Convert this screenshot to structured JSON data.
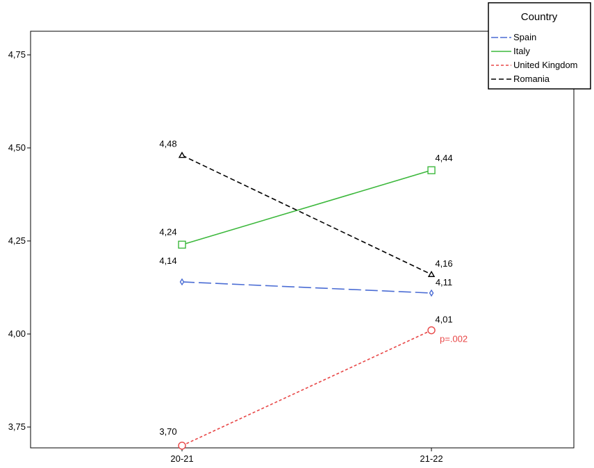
{
  "chart_data": {
    "type": "line",
    "categories": [
      "20-21",
      "21-22"
    ],
    "ylim": [
      3.7,
      4.8
    ],
    "yticks": [
      "3,75",
      "4,00",
      "4,25",
      "4,50",
      "4,75"
    ],
    "ytick_values": [
      3.75,
      4.0,
      4.25,
      4.5,
      4.75
    ],
    "grid": false,
    "legend": {
      "title": "Country",
      "placement": "top-right"
    },
    "series": [
      {
        "name": "Spain",
        "values": [
          4.14,
          4.11
        ],
        "labels": [
          "4,14",
          "4,11"
        ],
        "color": "#4a6cd4",
        "dash": "long-dash",
        "marker": "diamond"
      },
      {
        "name": "Italy",
        "values": [
          4.24,
          4.44
        ],
        "labels": [
          "4,24",
          "4,44"
        ],
        "color": "#3cb83c",
        "dash": "solid",
        "marker": "square"
      },
      {
        "name": "United Kingdom",
        "values": [
          3.7,
          4.01
        ],
        "labels": [
          "3,70",
          "4,01"
        ],
        "color": "#e84646",
        "dash": "short-dash",
        "marker": "circle"
      },
      {
        "name": "Romania",
        "values": [
          4.48,
          4.16
        ],
        "labels": [
          "4,48",
          "4,16"
        ],
        "color": "#000000",
        "dash": "dash",
        "marker": "triangle"
      }
    ],
    "annotations": [
      {
        "text": "p=.002",
        "series": "United Kingdom",
        "category": "21-22",
        "color": "#e84646"
      }
    ]
  }
}
